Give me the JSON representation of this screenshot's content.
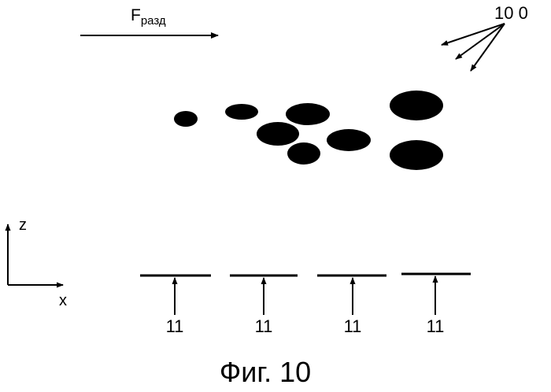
{
  "force": {
    "symbol": "F",
    "subscript": "разд"
  },
  "particle_group_label": "10 0",
  "axes": {
    "vertical": "z",
    "horizontal": "x"
  },
  "electrodes": [
    {
      "label": "11"
    },
    {
      "label": "11"
    },
    {
      "label": "11"
    },
    {
      "label": "11"
    }
  ],
  "caption": "Фиг. 10"
}
